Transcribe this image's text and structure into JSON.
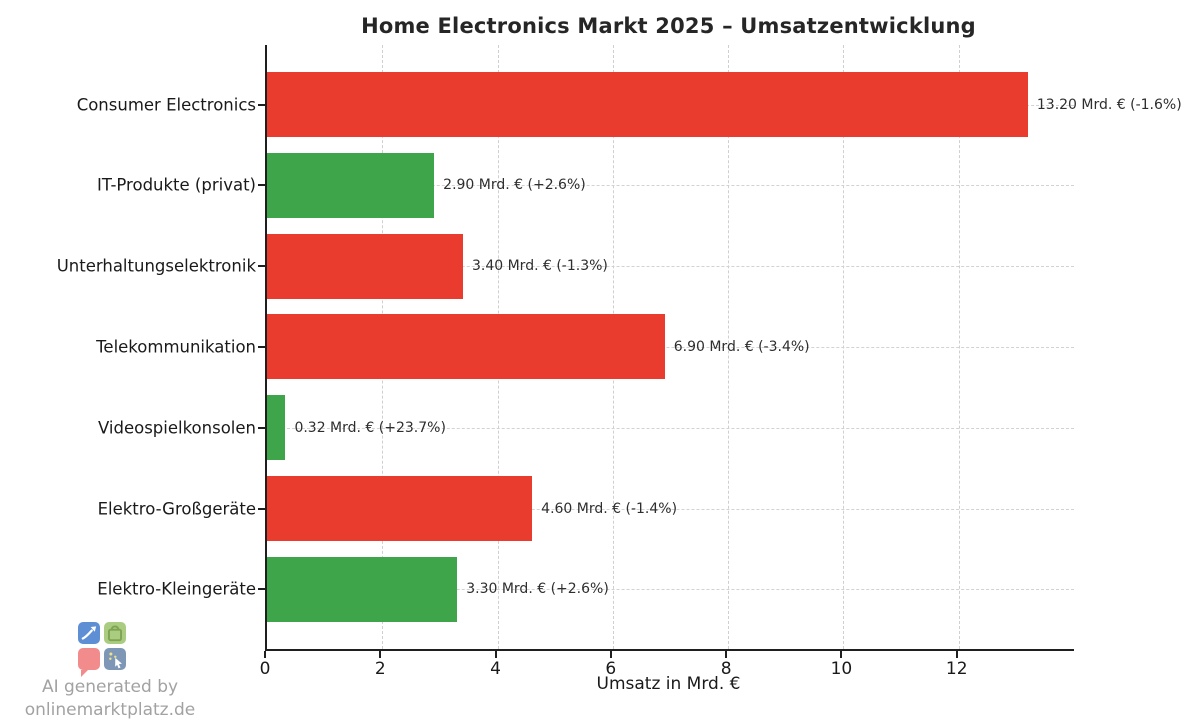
{
  "title": "Home Electronics Markt 2025 – Umsatzentwicklung",
  "chart_data": {
    "type": "bar",
    "orientation": "horizontal",
    "title": "Home Electronics Markt 2025 – Umsatzentwicklung",
    "xlabel": "Umsatz in Mrd. €",
    "ylabel": "",
    "xlim": [
      0,
      14
    ],
    "xticks": [
      0,
      2,
      4,
      6,
      8,
      10,
      12
    ],
    "grid": true,
    "legend": false,
    "categories": [
      "Consumer Electronics",
      "IT-Produkte (privat)",
      "Unterhaltungselektronik",
      "Telekommunikation",
      "Videospielkonsolen",
      "Elektro-Großgeräte",
      "Elektro-Kleingeräte"
    ],
    "values": [
      13.2,
      2.9,
      3.4,
      6.9,
      0.32,
      4.6,
      3.3
    ],
    "value_labels": [
      "13.20 Mrd. € (-1.6%)",
      "2.90 Mrd. € (+2.6%)",
      "3.40 Mrd. € (-1.3%)",
      "6.90 Mrd. € (-3.4%)",
      "0.32 Mrd. € (+23.7%)",
      "4.60 Mrd. € (-1.4%)",
      "3.30 Mrd. € (+2.6%)"
    ],
    "changes_percent": [
      -1.6,
      2.6,
      -1.3,
      -3.4,
      23.7,
      -1.4,
      2.6
    ],
    "bar_colors": [
      "#e93c2f",
      "#3fa54b",
      "#e93c2f",
      "#e93c2f",
      "#3fa54b",
      "#e93c2f",
      "#3fa54b"
    ],
    "colors": {
      "negative_bar": "#e93c2f",
      "positive_bar": "#3fa54b",
      "grid": "#cfcfcf",
      "axis": "#1f1f1f",
      "text": "#1a1a1a"
    }
  },
  "watermark": {
    "line1": "AI generated by",
    "line2": "onlinemarktplatz.de",
    "logo_squares": [
      {
        "name": "trend-up-icon",
        "color": "#5e8fd4"
      },
      {
        "name": "shopping-bag-icon",
        "color": "#a9cc80"
      },
      {
        "name": "speech-bubble-icon",
        "color": "#f28b8b"
      },
      {
        "name": "cursor-click-icon",
        "color": "#7e97b6"
      }
    ]
  }
}
